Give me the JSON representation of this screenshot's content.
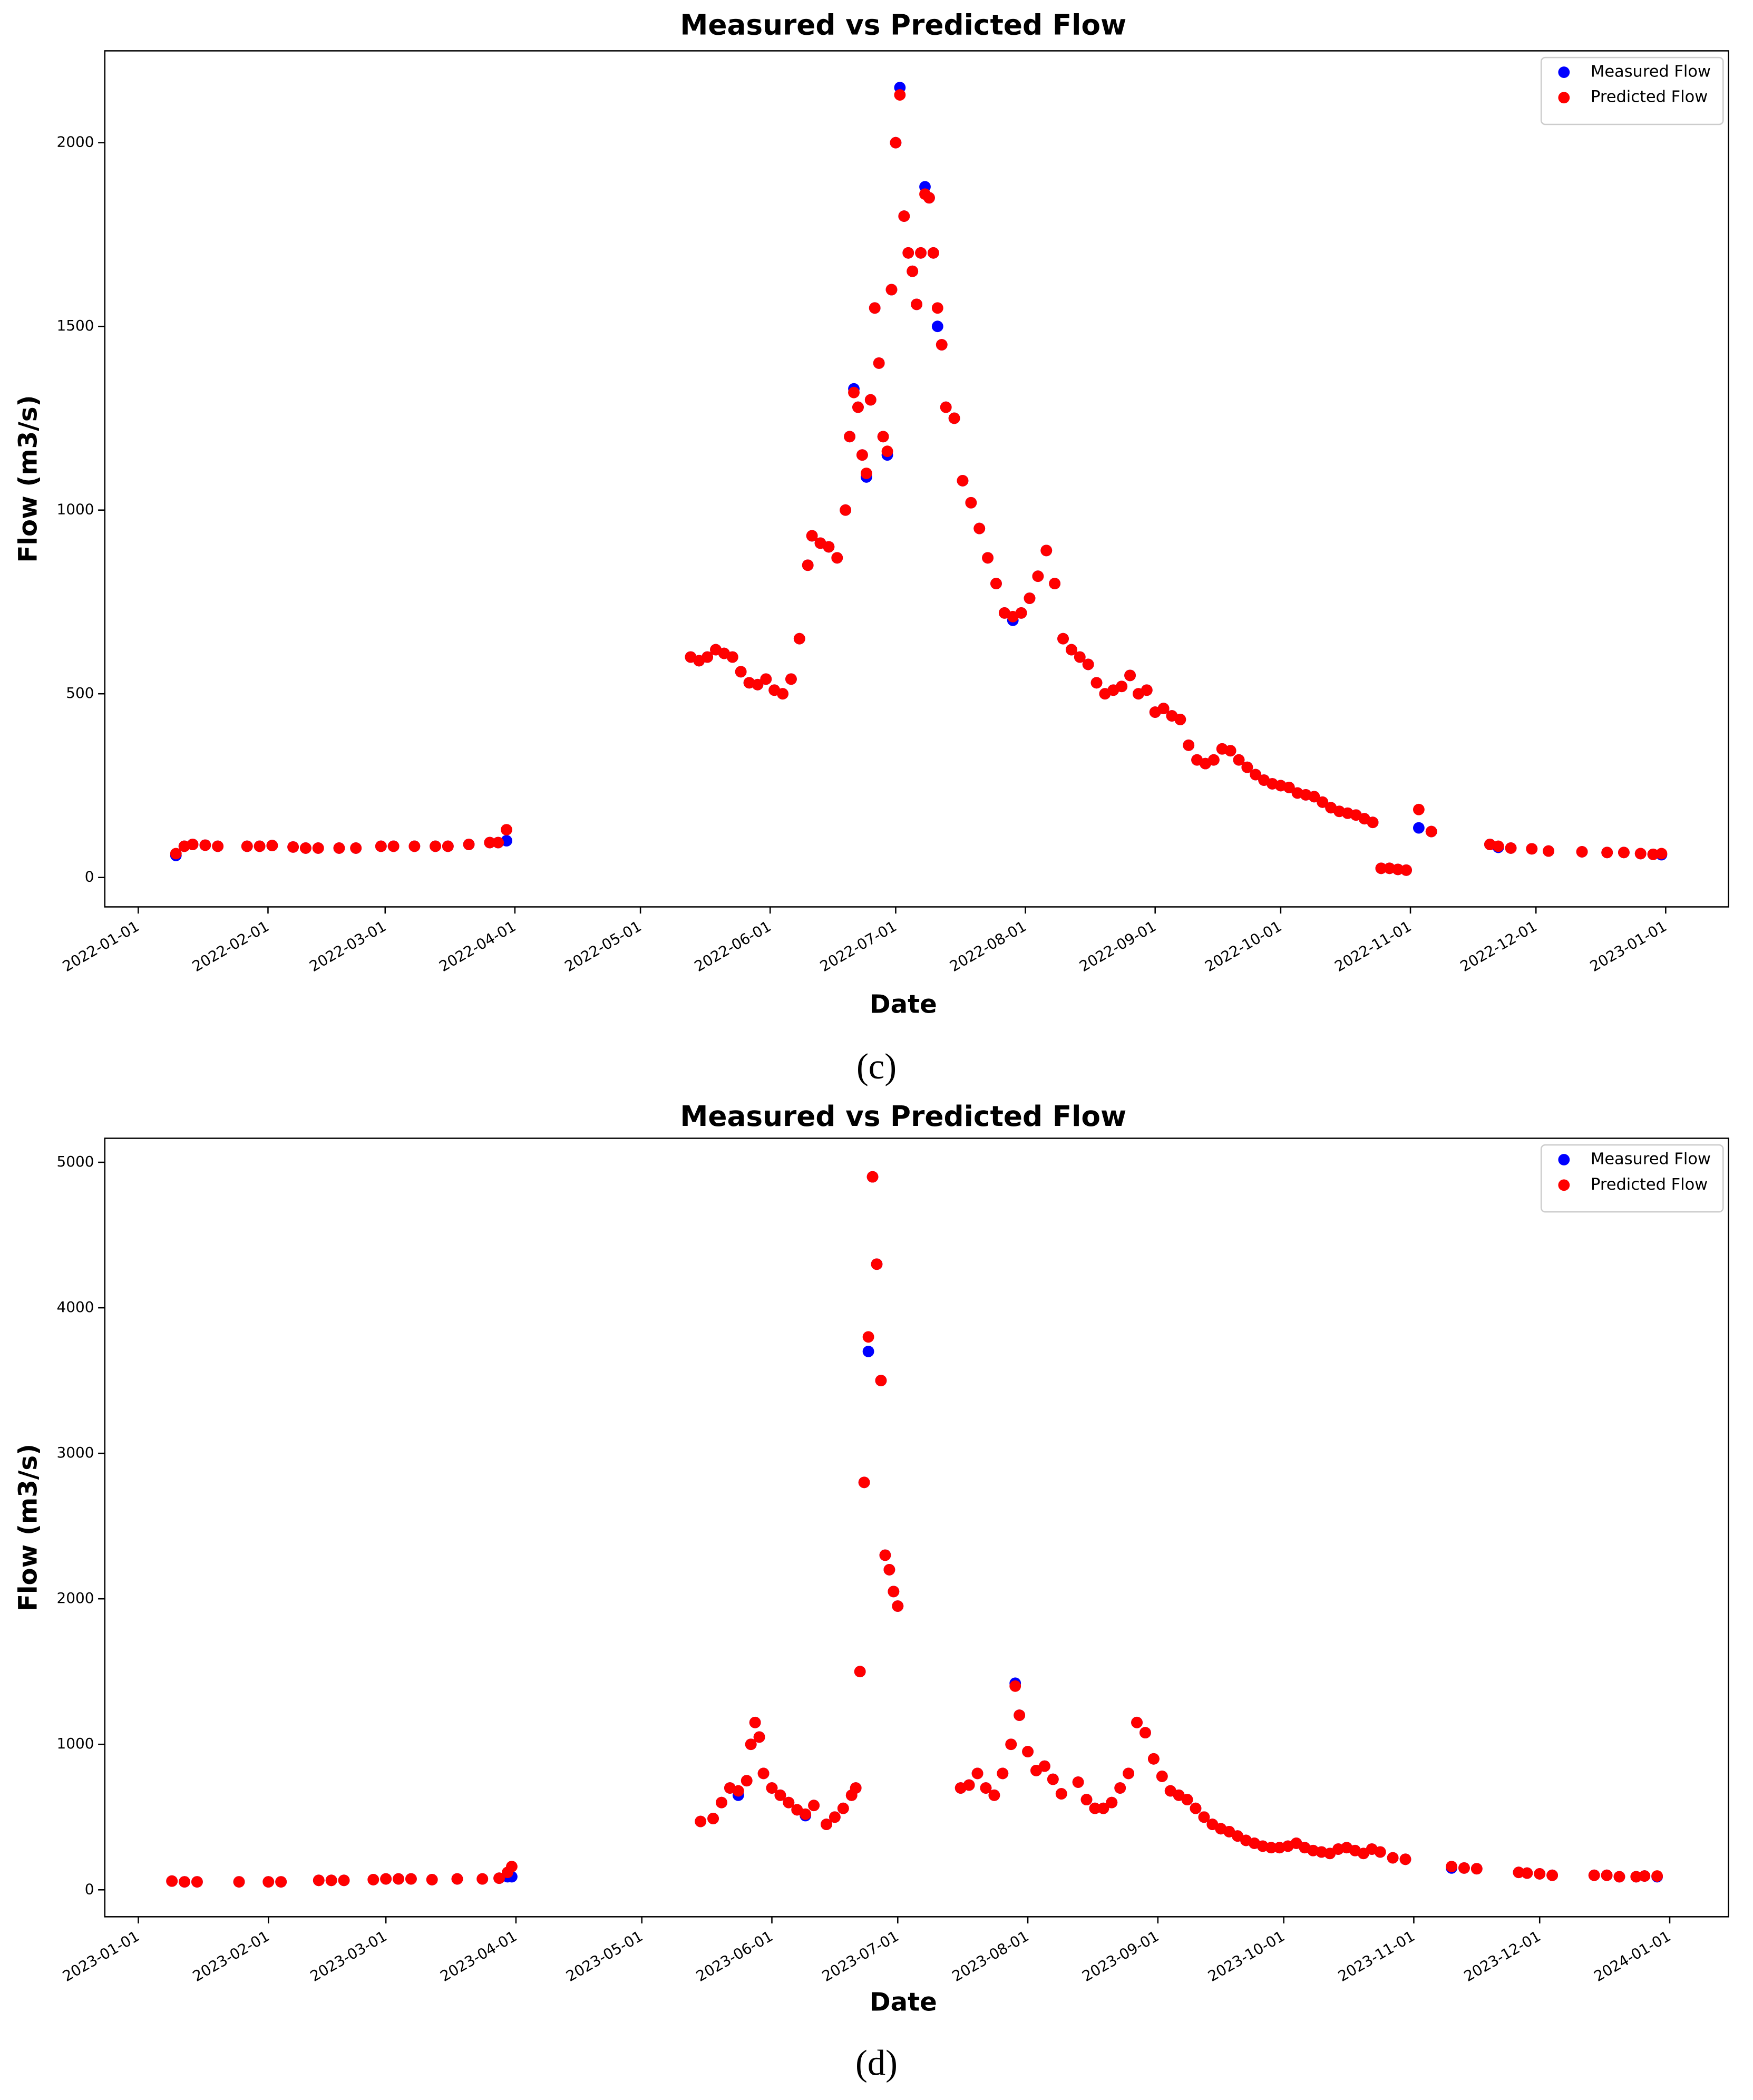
{
  "chart_data": [
    {
      "type": "scatter",
      "title": "Measured vs Predicted Flow",
      "x_label": "Date",
      "y_label": "Flow (m3/s)",
      "caption": "(c)",
      "legend": "upper right",
      "grid": false,
      "xlim": [
        "2021-12-24",
        "2023-01-16"
      ],
      "ylim": [
        -80,
        2250
      ],
      "xticks": [
        "2022-01-01",
        "2022-02-01",
        "2022-03-01",
        "2022-04-01",
        "2022-05-01",
        "2022-06-01",
        "2022-07-01",
        "2022-08-01",
        "2022-09-01",
        "2022-10-01",
        "2022-11-01",
        "2022-12-01",
        "2023-01-01"
      ],
      "yticks": [
        0,
        500,
        1000,
        1500,
        2000
      ],
      "x": [
        "2022-01-10",
        "2022-01-12",
        "2022-01-14",
        "2022-01-17",
        "2022-01-20",
        "2022-01-27",
        "2022-01-30",
        "2022-02-02",
        "2022-02-07",
        "2022-02-10",
        "2022-02-13",
        "2022-02-18",
        "2022-02-22",
        "2022-02-28",
        "2022-03-03",
        "2022-03-08",
        "2022-03-13",
        "2022-03-16",
        "2022-03-21",
        "2022-03-26",
        "2022-03-28",
        "2022-03-30",
        "2022-05-13",
        "2022-05-15",
        "2022-05-17",
        "2022-05-19",
        "2022-05-21",
        "2022-05-23",
        "2022-05-25",
        "2022-05-27",
        "2022-05-29",
        "2022-05-31",
        "2022-06-02",
        "2022-06-04",
        "2022-06-06",
        "2022-06-08",
        "2022-06-10",
        "2022-06-11",
        "2022-06-13",
        "2022-06-15",
        "2022-06-17",
        "2022-06-19",
        "2022-06-20",
        "2022-06-21",
        "2022-06-22",
        "2022-06-23",
        "2022-06-24",
        "2022-06-25",
        "2022-06-26",
        "2022-06-27",
        "2022-06-28",
        "2022-06-29",
        "2022-06-30",
        "2022-07-01",
        "2022-07-02",
        "2022-07-03",
        "2022-07-04",
        "2022-07-05",
        "2022-07-06",
        "2022-07-07",
        "2022-07-08",
        "2022-07-09",
        "2022-07-10",
        "2022-07-11",
        "2022-07-12",
        "2022-07-13",
        "2022-07-15",
        "2022-07-17",
        "2022-07-19",
        "2022-07-21",
        "2022-07-23",
        "2022-07-25",
        "2022-07-27",
        "2022-07-29",
        "2022-07-31",
        "2022-08-02",
        "2022-08-04",
        "2022-08-06",
        "2022-08-08",
        "2022-08-10",
        "2022-08-12",
        "2022-08-14",
        "2022-08-16",
        "2022-08-18",
        "2022-08-20",
        "2022-08-22",
        "2022-08-24",
        "2022-08-26",
        "2022-08-28",
        "2022-08-30",
        "2022-09-01",
        "2022-09-03",
        "2022-09-05",
        "2022-09-07",
        "2022-09-09",
        "2022-09-11",
        "2022-09-13",
        "2022-09-15",
        "2022-09-17",
        "2022-09-19",
        "2022-09-21",
        "2022-09-23",
        "2022-09-25",
        "2022-09-27",
        "2022-09-29",
        "2022-10-01",
        "2022-10-03",
        "2022-10-05",
        "2022-10-07",
        "2022-10-09",
        "2022-10-11",
        "2022-10-13",
        "2022-10-15",
        "2022-10-17",
        "2022-10-19",
        "2022-10-21",
        "2022-10-23",
        "2022-10-25",
        "2022-10-27",
        "2022-10-29",
        "2022-10-31",
        "2022-11-03",
        "2022-11-06",
        "2022-11-20",
        "2022-11-22",
        "2022-11-25",
        "2022-11-30",
        "2022-12-04",
        "2022-12-12",
        "2022-12-18",
        "2022-12-22",
        "2022-12-26",
        "2022-12-29",
        "2022-12-31"
      ],
      "series": [
        {
          "name": "Measured Flow",
          "color": "#0000ff",
          "values": [
            60,
            85,
            90,
            88,
            85,
            85,
            85,
            87,
            83,
            80,
            80,
            80,
            80,
            85,
            85,
            85,
            85,
            85,
            90,
            95,
            95,
            100,
            600,
            590,
            600,
            620,
            610,
            600,
            560,
            530,
            525,
            540,
            510,
            500,
            540,
            650,
            850,
            930,
            910,
            900,
            870,
            1000,
            1200,
            1330,
            1280,
            1150,
            1090,
            1300,
            1550,
            1400,
            1200,
            1150,
            1600,
            2000,
            2150,
            1800,
            1700,
            1650,
            1560,
            1700,
            1880,
            1850,
            1700,
            1500,
            1450,
            1280,
            1250,
            1080,
            1020,
            950,
            870,
            800,
            720,
            700,
            720,
            760,
            820,
            890,
            800,
            650,
            620,
            600,
            580,
            530,
            500,
            510,
            520,
            550,
            500,
            510,
            450,
            460,
            440,
            430,
            360,
            320,
            310,
            320,
            350,
            345,
            320,
            300,
            280,
            265,
            255,
            250,
            245,
            230,
            225,
            220,
            205,
            190,
            180,
            175,
            170,
            160,
            150,
            25,
            25,
            22,
            20,
            135,
            125,
            90,
            82,
            80,
            78,
            72,
            70,
            68,
            68,
            65,
            63,
            62
          ]
        },
        {
          "name": "Predicted Flow",
          "color": "#ff0000",
          "values": [
            65,
            85,
            90,
            88,
            85,
            85,
            85,
            87,
            83,
            80,
            80,
            80,
            80,
            85,
            85,
            85,
            85,
            85,
            90,
            95,
            95,
            130,
            600,
            590,
            600,
            620,
            610,
            600,
            560,
            530,
            525,
            540,
            510,
            500,
            540,
            650,
            850,
            930,
            910,
            900,
            870,
            1000,
            1200,
            1320,
            1280,
            1150,
            1100,
            1300,
            1550,
            1400,
            1200,
            1160,
            1600,
            2000,
            2130,
            1800,
            1700,
            1650,
            1560,
            1700,
            1860,
            1850,
            1700,
            1550,
            1450,
            1280,
            1250,
            1080,
            1020,
            950,
            870,
            800,
            720,
            710,
            720,
            760,
            820,
            890,
            800,
            650,
            620,
            600,
            580,
            530,
            500,
            510,
            520,
            550,
            500,
            510,
            450,
            460,
            440,
            430,
            360,
            320,
            310,
            320,
            350,
            345,
            320,
            300,
            280,
            265,
            255,
            250,
            245,
            230,
            225,
            220,
            205,
            190,
            180,
            175,
            170,
            160,
            150,
            25,
            25,
            22,
            20,
            185,
            125,
            90,
            85,
            80,
            78,
            72,
            70,
            68,
            68,
            65,
            63,
            65
          ]
        }
      ]
    },
    {
      "type": "scatter",
      "title": "Measured vs Predicted Flow",
      "x_label": "Date",
      "y_label": "Flow (m3/s)",
      "caption": "(d)",
      "legend": "upper right",
      "grid": false,
      "xlim": [
        "2022-12-24",
        "2024-01-15"
      ],
      "ylim": [
        -185,
        5165
      ],
      "xticks": [
        "2023-01-01",
        "2023-02-01",
        "2023-03-01",
        "2023-04-01",
        "2023-05-01",
        "2023-06-01",
        "2023-07-01",
        "2023-08-01",
        "2023-09-01",
        "2023-10-01",
        "2023-11-01",
        "2023-12-01",
        "2024-01-01"
      ],
      "yticks": [
        0,
        1000,
        2000,
        3000,
        4000,
        5000
      ],
      "x": [
        "2023-01-09",
        "2023-01-12",
        "2023-01-15",
        "2023-01-25",
        "2023-02-01",
        "2023-02-04",
        "2023-02-13",
        "2023-02-16",
        "2023-02-19",
        "2023-02-26",
        "2023-03-01",
        "2023-03-04",
        "2023-03-07",
        "2023-03-12",
        "2023-03-18",
        "2023-03-24",
        "2023-03-28",
        "2023-03-30",
        "2023-03-31",
        "2023-05-15",
        "2023-05-18",
        "2023-05-20",
        "2023-05-22",
        "2023-05-24",
        "2023-05-26",
        "2023-05-27",
        "2023-05-28",
        "2023-05-29",
        "2023-05-30",
        "2023-06-01",
        "2023-06-03",
        "2023-06-05",
        "2023-06-07",
        "2023-06-09",
        "2023-06-11",
        "2023-06-14",
        "2023-06-16",
        "2023-06-18",
        "2023-06-20",
        "2023-06-21",
        "2023-06-22",
        "2023-06-23",
        "2023-06-24",
        "2023-06-25",
        "2023-06-26",
        "2023-06-27",
        "2023-06-28",
        "2023-06-29",
        "2023-06-30",
        "2023-07-01",
        "2023-07-16",
        "2023-07-18",
        "2023-07-20",
        "2023-07-22",
        "2023-07-24",
        "2023-07-26",
        "2023-07-28",
        "2023-07-29",
        "2023-07-30",
        "2023-08-01",
        "2023-08-03",
        "2023-08-05",
        "2023-08-07",
        "2023-08-09",
        "2023-08-13",
        "2023-08-15",
        "2023-08-17",
        "2023-08-19",
        "2023-08-21",
        "2023-08-23",
        "2023-08-25",
        "2023-08-27",
        "2023-08-29",
        "2023-08-31",
        "2023-09-02",
        "2023-09-04",
        "2023-09-06",
        "2023-09-08",
        "2023-09-10",
        "2023-09-12",
        "2023-09-14",
        "2023-09-16",
        "2023-09-18",
        "2023-09-20",
        "2023-09-22",
        "2023-09-24",
        "2023-09-26",
        "2023-09-28",
        "2023-09-30",
        "2023-10-02",
        "2023-10-04",
        "2023-10-06",
        "2023-10-08",
        "2023-10-10",
        "2023-10-12",
        "2023-10-14",
        "2023-10-16",
        "2023-10-18",
        "2023-10-20",
        "2023-10-22",
        "2023-10-24",
        "2023-10-27",
        "2023-10-30",
        "2023-11-10",
        "2023-11-13",
        "2023-11-16",
        "2023-11-26",
        "2023-11-28",
        "2023-12-01",
        "2023-12-04",
        "2023-12-14",
        "2023-12-17",
        "2023-12-20",
        "2023-12-24",
        "2023-12-26",
        "2023-12-29"
      ],
      "series": [
        {
          "name": "Measured Flow",
          "color": "#0000ff",
          "values": [
            60,
            55,
            55,
            55,
            55,
            55,
            65,
            65,
            65,
            70,
            75,
            75,
            75,
            70,
            75,
            75,
            80,
            90,
            90,
            470,
            490,
            600,
            700,
            650,
            750,
            1000,
            1150,
            1050,
            800,
            700,
            650,
            600,
            550,
            510,
            580,
            450,
            500,
            560,
            650,
            700,
            1500,
            2800,
            3700,
            4900,
            4300,
            3500,
            2300,
            2200,
            2050,
            1950,
            700,
            720,
            800,
            700,
            650,
            800,
            1000,
            1420,
            1200,
            950,
            820,
            850,
            760,
            660,
            740,
            620,
            560,
            560,
            600,
            700,
            800,
            1150,
            1080,
            900,
            780,
            680,
            650,
            620,
            560,
            500,
            450,
            420,
            400,
            370,
            340,
            320,
            300,
            290,
            290,
            300,
            320,
            290,
            270,
            260,
            250,
            280,
            290,
            270,
            250,
            280,
            260,
            220,
            210,
            150,
            150,
            145,
            120,
            115,
            110,
            100,
            100,
            100,
            90,
            90,
            95,
            90
          ]
        },
        {
          "name": "Predicted Flow",
          "color": "#ff0000",
          "values": [
            60,
            55,
            55,
            55,
            55,
            55,
            65,
            65,
            65,
            70,
            75,
            75,
            75,
            70,
            75,
            75,
            80,
            120,
            160,
            470,
            490,
            600,
            700,
            680,
            750,
            1000,
            1150,
            1050,
            800,
            700,
            650,
            600,
            550,
            520,
            580,
            450,
            500,
            560,
            650,
            700,
            1500,
            2800,
            3800,
            4900,
            4300,
            3500,
            2300,
            2200,
            2050,
            1950,
            700,
            720,
            800,
            700,
            650,
            800,
            1000,
            1400,
            1200,
            950,
            820,
            850,
            760,
            660,
            740,
            620,
            560,
            560,
            600,
            700,
            800,
            1150,
            1080,
            900,
            780,
            680,
            650,
            620,
            560,
            500,
            450,
            420,
            400,
            370,
            340,
            320,
            300,
            290,
            290,
            300,
            320,
            290,
            270,
            260,
            250,
            280,
            290,
            270,
            250,
            280,
            260,
            220,
            210,
            160,
            150,
            145,
            120,
            115,
            110,
            100,
            100,
            100,
            90,
            90,
            95,
            95
          ]
        }
      ]
    }
  ]
}
